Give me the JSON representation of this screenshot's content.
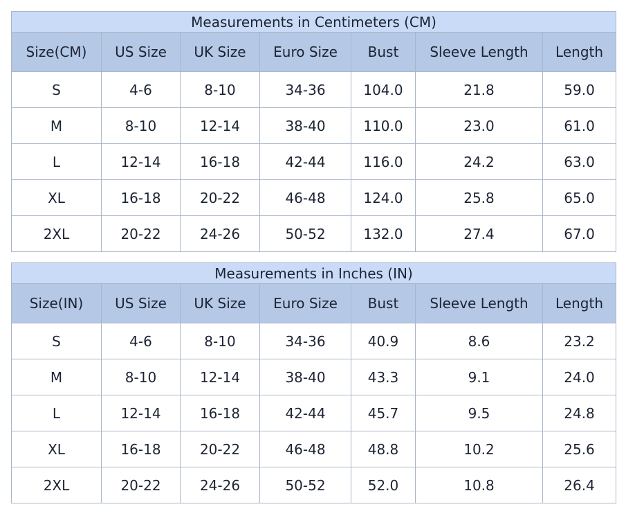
{
  "tables": [
    {
      "title": "Measurements in Centimeters (CM)",
      "header": [
        "Size(CM)",
        "US Size",
        "UK Size",
        "Euro Size",
        "Bust",
        "Sleeve Length",
        "Length"
      ],
      "rows": [
        [
          "S",
          "4-6",
          "8-10",
          "34-36",
          "104.0",
          "21.8",
          "59.0"
        ],
        [
          "M",
          "8-10",
          "12-14",
          "38-40",
          "110.0",
          "23.0",
          "61.0"
        ],
        [
          "L",
          "12-14",
          "16-18",
          "42-44",
          "116.0",
          "24.2",
          "63.0"
        ],
        [
          "XL",
          "16-18",
          "20-22",
          "46-48",
          "124.0",
          "25.8",
          "65.0"
        ],
        [
          "2XL",
          "20-22",
          "24-26",
          "50-52",
          "132.0",
          "27.4",
          "67.0"
        ]
      ]
    },
    {
      "title": "Measurements in Inches (IN)",
      "header": [
        "Size(IN)",
        "US Size",
        "UK Size",
        "Euro Size",
        "Bust",
        "Sleeve Length",
        "Length"
      ],
      "rows": [
        [
          "S",
          "4-6",
          "8-10",
          "34-36",
          "40.9",
          "8.6",
          "23.2"
        ],
        [
          "M",
          "8-10",
          "12-14",
          "38-40",
          "43.3",
          "9.1",
          "24.0"
        ],
        [
          "L",
          "12-14",
          "16-18",
          "42-44",
          "45.7",
          "9.5",
          "24.8"
        ],
        [
          "XL",
          "16-18",
          "20-22",
          "46-48",
          "48.8",
          "10.2",
          "25.6"
        ],
        [
          "2XL",
          "20-22",
          "24-26",
          "50-52",
          "52.0",
          "10.8",
          "26.4"
        ]
      ]
    }
  ]
}
